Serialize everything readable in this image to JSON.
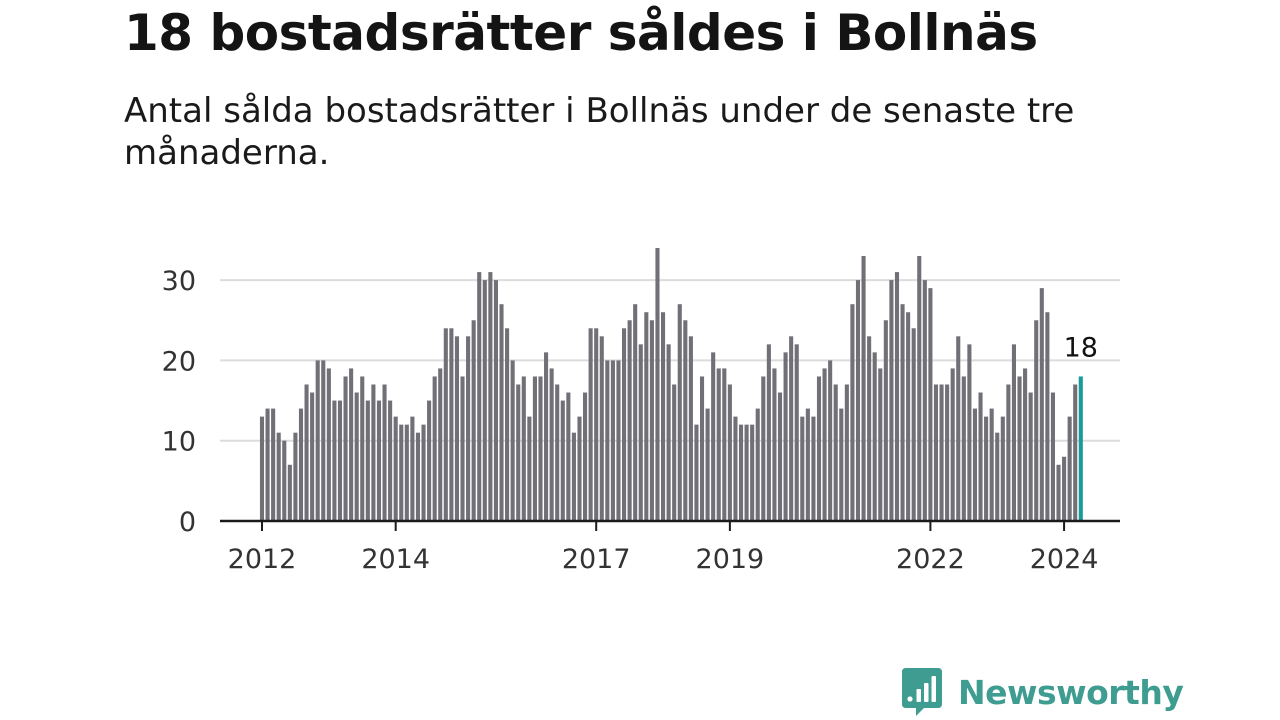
{
  "header": {
    "title": "18 bostadsrätter såldes i Bollnäs",
    "subtitle": "Antal sålda bostadsrätter i Bollnäs under de senaste tre månaderna."
  },
  "chart_data": {
    "type": "bar",
    "x_start": "2012-01",
    "x_end": "2024-03",
    "values": [
      13,
      14,
      14,
      11,
      10,
      7,
      11,
      14,
      17,
      16,
      20,
      20,
      19,
      15,
      15,
      18,
      19,
      16,
      18,
      15,
      17,
      15,
      17,
      15,
      13,
      12,
      12,
      13,
      11,
      12,
      15,
      18,
      19,
      24,
      24,
      23,
      18,
      23,
      25,
      31,
      30,
      31,
      30,
      27,
      24,
      20,
      17,
      18,
      13,
      18,
      18,
      21,
      19,
      17,
      15,
      16,
      11,
      13,
      16,
      24,
      24,
      23,
      20,
      20,
      20,
      24,
      25,
      27,
      22,
      26,
      25,
      34,
      26,
      22,
      17,
      27,
      25,
      23,
      12,
      18,
      14,
      21,
      19,
      19,
      17,
      13,
      12,
      12,
      12,
      14,
      18,
      22,
      19,
      16,
      21,
      23,
      22,
      13,
      14,
      13,
      18,
      19,
      20,
      17,
      14,
      17,
      27,
      30,
      33,
      23,
      21,
      19,
      25,
      30,
      31,
      27,
      26,
      24,
      33,
      30,
      29,
      17,
      17,
      17,
      19,
      23,
      18,
      22,
      14,
      16,
      13,
      14,
      11,
      13,
      17,
      22,
      18,
      19,
      16,
      25,
      29,
      26,
      16,
      7,
      8,
      13,
      17,
      18
    ],
    "highlight": {
      "label": "18",
      "value": 18
    },
    "xticks": [
      "2012",
      "2014",
      "2017",
      "2019",
      "2022",
      "2024"
    ],
    "yticks": [
      "0",
      "10",
      "20",
      "30"
    ],
    "ylim": [
      0,
      36
    ],
    "grid": true,
    "bar_color": "#727077",
    "highlight_color": "#1a9a99"
  },
  "brand": {
    "name": "Newsworthy",
    "color": "#3e9c91",
    "logo_icon": "newsworthy-bars-icon"
  }
}
